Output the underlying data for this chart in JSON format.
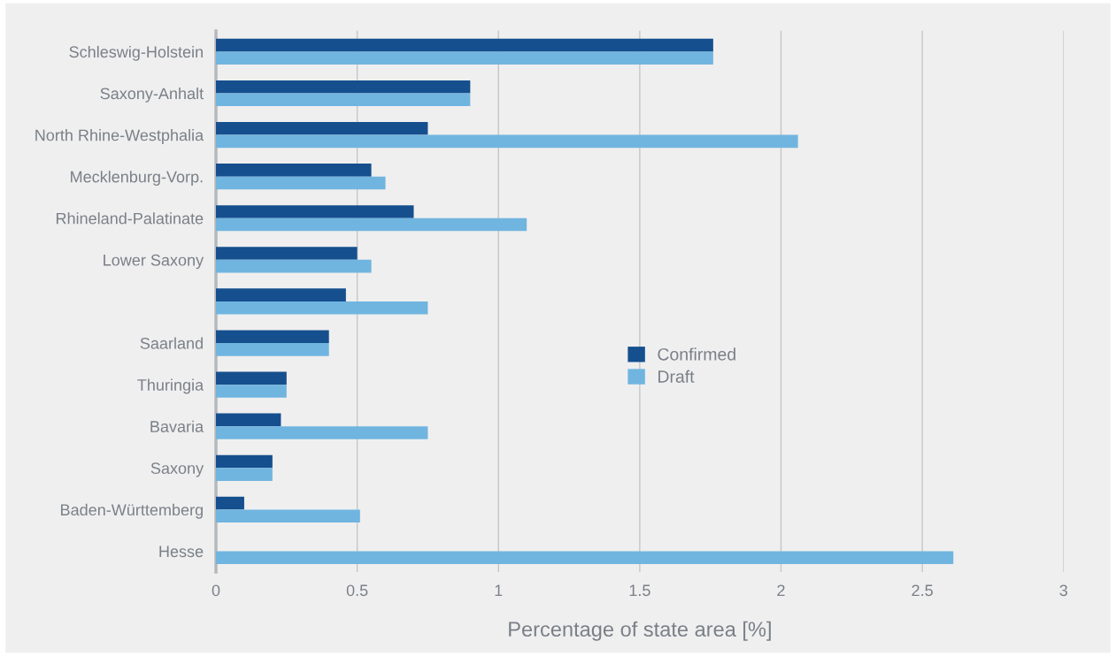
{
  "chart_data": {
    "type": "bar",
    "orientation": "horizontal",
    "categories": [
      "Schleswig-Holstein",
      "Saxony-Anhalt",
      "North Rhine-Westphalia",
      "Mecklenburg-Vorp.",
      "Rhineland-Palatinate",
      "Lower Saxony",
      null,
      "Saarland",
      "Thuringia",
      "Bavaria",
      "Saxony",
      "Baden-Württemberg",
      "Hesse"
    ],
    "series": [
      {
        "name": "Confirmed",
        "color": "#154f8e",
        "values": [
          1.76,
          0.9,
          0.75,
          0.55,
          0.7,
          0.5,
          0.46,
          0.4,
          0.25,
          0.23,
          0.2,
          0.1,
          null
        ]
      },
      {
        "name": "Draft",
        "color": "#70b5e0",
        "values": [
          1.76,
          0.9,
          2.06,
          0.6,
          1.1,
          0.55,
          0.75,
          0.4,
          0.25,
          0.75,
          0.2,
          0.51,
          2.61
        ]
      }
    ],
    "xlabel": "Percentage of state area [%]",
    "xlim": [
      0,
      3
    ],
    "xticks": [
      0,
      0.5,
      1,
      1.5,
      2,
      2.5,
      3
    ],
    "grid": "x",
    "legend": "center"
  }
}
